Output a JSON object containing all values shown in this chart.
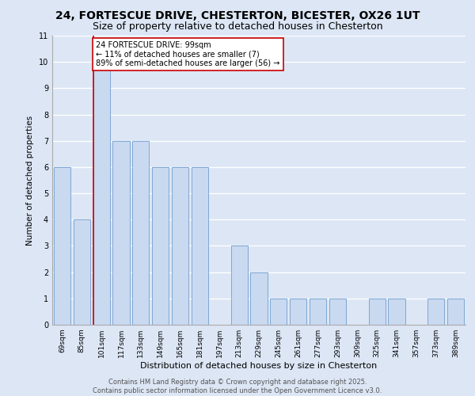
{
  "title1": "24, FORTESCUE DRIVE, CHESTERTON, BICESTER, OX26 1UT",
  "title2": "Size of property relative to detached houses in Chesterton",
  "xlabel": "Distribution of detached houses by size in Chesterton",
  "ylabel": "Number of detached properties",
  "categories": [
    "69sqm",
    "85sqm",
    "101sqm",
    "117sqm",
    "133sqm",
    "149sqm",
    "165sqm",
    "181sqm",
    "197sqm",
    "213sqm",
    "229sqm",
    "245sqm",
    "261sqm",
    "277sqm",
    "293sqm",
    "309sqm",
    "325sqm",
    "341sqm",
    "357sqm",
    "373sqm",
    "389sqm"
  ],
  "values": [
    6,
    4,
    10,
    7,
    7,
    6,
    6,
    6,
    0,
    3,
    2,
    1,
    1,
    1,
    1,
    0,
    1,
    1,
    0,
    1,
    1
  ],
  "bar_color": "#c9d9f0",
  "bar_edge_color": "#7fa8d4",
  "vline_color": "#cc0000",
  "annotation_box_text": "24 FORTESCUE DRIVE: 99sqm\n← 11% of detached houses are smaller (7)\n89% of semi-detached houses are larger (56) →",
  "annotation_box_color": "#ffffff",
  "annotation_box_edge": "#cc0000",
  "ylim": [
    0,
    11
  ],
  "yticks": [
    0,
    1,
    2,
    3,
    4,
    5,
    6,
    7,
    8,
    9,
    10,
    11
  ],
  "plot_bg_color": "#dce6f5",
  "fig_bg_color": "#dce6f5",
  "grid_color": "#ffffff",
  "footer_line1": "Contains HM Land Registry data © Crown copyright and database right 2025.",
  "footer_line2": "Contains public sector information licensed under the Open Government Licence v3.0.",
  "title1_fontsize": 10,
  "title2_fontsize": 9,
  "xlabel_fontsize": 8,
  "ylabel_fontsize": 7.5,
  "tick_fontsize": 6.5,
  "annotation_fontsize": 7,
  "footer_fontsize": 6
}
